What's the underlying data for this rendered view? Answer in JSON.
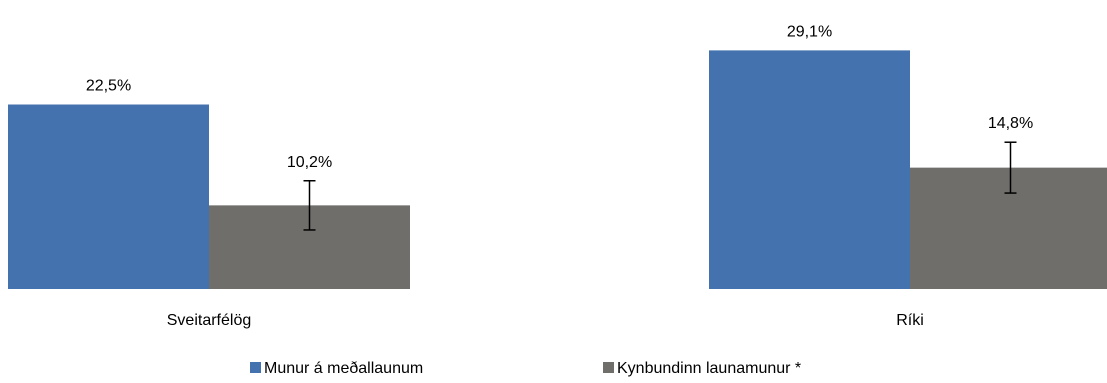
{
  "chart_data": {
    "type": "bar",
    "categories": [
      "Sveitarfélög",
      "Ríki"
    ],
    "series": [
      {
        "name": "Munur á meðallaunum",
        "color": "#4472ae",
        "values": [
          22.5,
          29.1
        ],
        "labels": [
          "22,5%",
          "29,1%"
        ]
      },
      {
        "name": "Kynbundinn launamunur *",
        "color": "#6f6e6b",
        "values": [
          10.2,
          14.8
        ],
        "labels": [
          "10,2%",
          "14,8%"
        ],
        "error_bars": [
          {
            "low": 7.2,
            "high": 13.2
          },
          {
            "low": 11.7,
            "high": 17.9
          }
        ]
      }
    ],
    "ylim": [
      0,
      32
    ],
    "grid": false,
    "legend": "bottom"
  }
}
